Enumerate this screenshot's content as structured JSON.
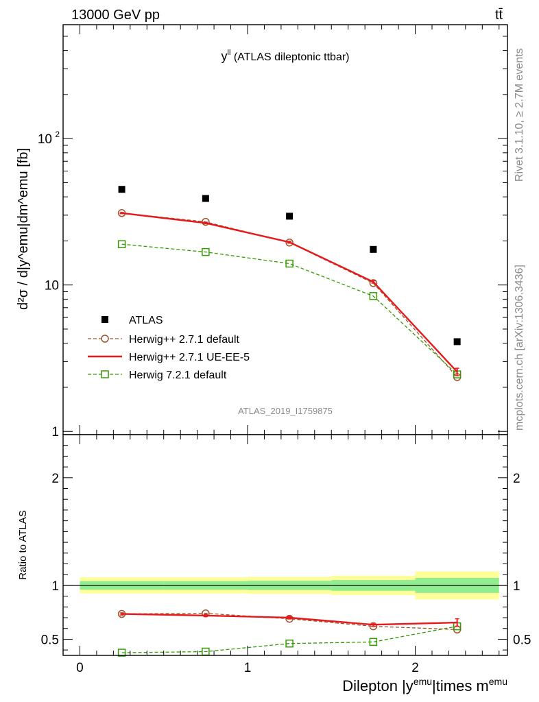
{
  "header": {
    "left": "13000 GeV pp",
    "right": "tt̄"
  },
  "side_labels": {
    "rivet": "Rivet 3.1.10, ≥ 2.7M events",
    "mcplots": "mcplots.cern.ch [arXiv:1306.3436]"
  },
  "chart_data": [
    {
      "type": "line",
      "panel": "main",
      "title_main": "y",
      "title_sup": "ll",
      "title_rest": " (ATLAS dileptonic ttbar)",
      "ylabel": "d²σ / d|y^emu|dm^emu [fb]",
      "yscale": "log",
      "ylim": [
        0.95,
        600
      ],
      "xlim": [
        -0.1,
        2.55
      ],
      "yticks": [
        {
          "v": 1,
          "label": "1"
        },
        {
          "v": 10,
          "label": "10"
        },
        {
          "v": 100,
          "label": "10",
          "sup": "2"
        }
      ],
      "watermark": "ATLAS_2019_I1759875",
      "x": [
        0.25,
        0.75,
        1.25,
        1.75,
        2.25
      ],
      "series": [
        {
          "name": "ATLAS",
          "style": "data",
          "color": "#000000",
          "values": [
            45,
            39,
            29.5,
            17.5,
            4.1
          ]
        },
        {
          "name": "Herwig++ 2.7.1 default",
          "style": "circle-dashed",
          "color": "#a0522d",
          "values": [
            31,
            27,
            19.5,
            10.3,
            2.35
          ]
        },
        {
          "name": "Herwig++ 2.7.1 UE-EE-5",
          "style": "solid",
          "color": "#e41a1c",
          "values": [
            31,
            26.5,
            19.6,
            10.5,
            2.55
          ],
          "errors": [
            0.3,
            0.3,
            0.3,
            0.2,
            0.15
          ]
        },
        {
          "name": "Herwig 7.2.1 default",
          "style": "square-dashed",
          "color": "#339900",
          "values": [
            19,
            16.8,
            14,
            8.4,
            2.45
          ]
        }
      ]
    },
    {
      "type": "line",
      "panel": "ratio",
      "ylabel": "Ratio to ATLAS",
      "xlabel_main": "Dilepton |y",
      "xlabel_sup1": "emu",
      "xlabel_mid": "|times m",
      "xlabel_sup2": "emu",
      "ylim": [
        0.35,
        2.4
      ],
      "xlim": [
        -0.1,
        2.55
      ],
      "yticks": [
        {
          "v": 0.5,
          "label": "0.5"
        },
        {
          "v": 1,
          "label": "1"
        },
        {
          "v": 2,
          "label": "2"
        }
      ],
      "xticks": [
        {
          "v": 0,
          "label": "0"
        },
        {
          "v": 1,
          "label": "1"
        },
        {
          "v": 2,
          "label": "2"
        }
      ],
      "bands": [
        {
          "x0": 0.0,
          "x1": 0.5,
          "yellow": [
            0.925,
            1.075
          ],
          "green": [
            0.96,
            1.04
          ]
        },
        {
          "x0": 0.5,
          "x1": 1.0,
          "yellow": [
            0.925,
            1.075
          ],
          "green": [
            0.96,
            1.04
          ]
        },
        {
          "x0": 1.0,
          "x1": 1.5,
          "yellow": [
            0.92,
            1.08
          ],
          "green": [
            0.957,
            1.043
          ]
        },
        {
          "x0": 1.5,
          "x1": 2.0,
          "yellow": [
            0.91,
            1.09
          ],
          "green": [
            0.95,
            1.05
          ]
        },
        {
          "x0": 2.0,
          "x1": 2.5,
          "yellow": [
            0.87,
            1.13
          ],
          "green": [
            0.93,
            1.07
          ]
        }
      ],
      "x": [
        0.25,
        0.75,
        1.25,
        1.75,
        2.25
      ],
      "series": [
        {
          "name": "Herwig++ 2.7.1 default",
          "style": "circle-dashed",
          "color": "#a0522d",
          "values": [
            0.735,
            0.74,
            0.69,
            0.62,
            0.59
          ]
        },
        {
          "name": "Herwig++ 2.7.1 UE-EE-5",
          "style": "solid",
          "color": "#e41a1c",
          "values": [
            0.735,
            0.72,
            0.7,
            0.635,
            0.655
          ],
          "errors": [
            0.01,
            0.01,
            0.012,
            0.015,
            0.035
          ]
        },
        {
          "name": "Herwig 7.2.1 default",
          "style": "square-dashed",
          "color": "#339900",
          "values": [
            0.375,
            0.385,
            0.46,
            0.475,
            0.62
          ]
        }
      ]
    }
  ]
}
